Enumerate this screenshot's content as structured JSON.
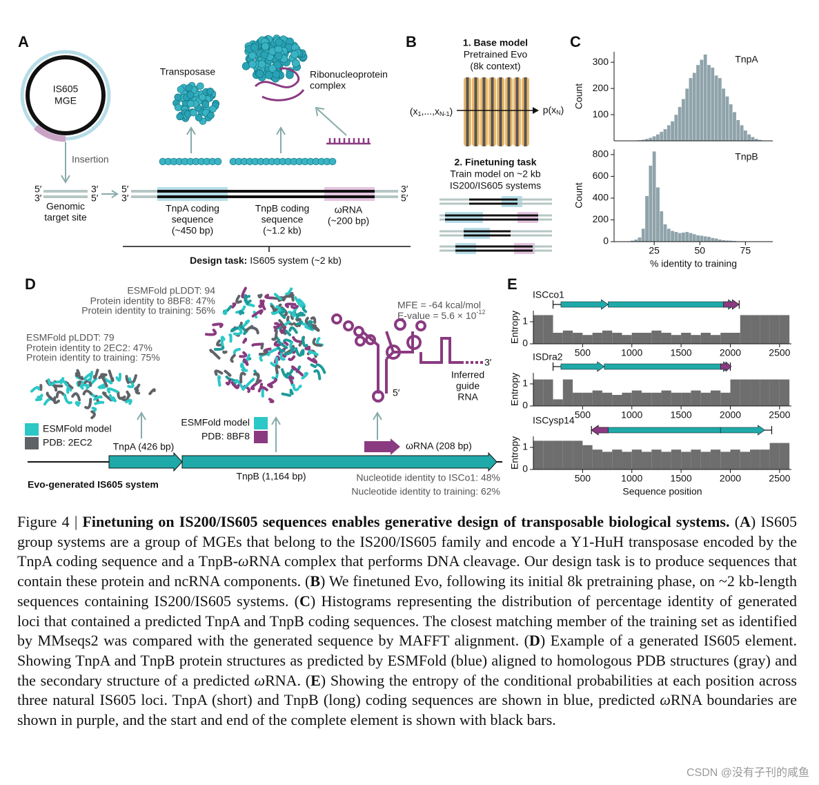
{
  "figure": {
    "A": {
      "label": "A",
      "mge": [
        "IS605",
        "MGE"
      ],
      "insertion": "Insertion",
      "genomic": [
        "Genomic",
        "target site"
      ],
      "five": "5′",
      "three": "3′",
      "transposase": "Transposase",
      "rnp": [
        "Ribonucleoprotein",
        "complex"
      ],
      "tnpa": [
        "TnpA coding",
        "sequence",
        "(~450 bp)"
      ],
      "tnpb": [
        "TnpB coding",
        "sequence",
        "(~1.2 kb)"
      ],
      "wrna": [
        "ωRNA",
        "(~200 bp)"
      ],
      "design_bold": "Design task:",
      "design": "IS605 system (~2 kb)"
    },
    "B": {
      "label": "B",
      "base": [
        "1. Base model",
        "Pretrained Evo",
        "(8k context)"
      ],
      "input": [
        "(x",
        "1",
        ",...,x",
        "N-1",
        ")"
      ],
      "output": [
        "p(x",
        "N",
        ")"
      ],
      "finetune": [
        "2. Finetuning task",
        "Train model on ~2 kb",
        "IS200/IS605 systems"
      ]
    },
    "C": {
      "label": "C"
    },
    "D": {
      "label": "D",
      "tnpb_info": [
        "ESMFold pLDDT: 94",
        "Protein identity to 8BF8: 47%",
        "Protein identity to training: 56%"
      ],
      "tnpa_info": [
        "ESMFold pLDDT: 79",
        "Protein identity to 2EC2: 47%",
        "Protein identity to training: 75%"
      ],
      "tnpa_legend": [
        "ESMFold model",
        "PDB: 2EC2"
      ],
      "tnpb_legend": [
        "ESMFold model",
        "PDB: 8BF8"
      ],
      "mfe": "MFE = -64 kcal/mol",
      "evalue": "E-value = 5.6 × 10",
      "evalue_exp": "-12",
      "five": "5′",
      "three": "3′",
      "guide": [
        "Inferred",
        "guide",
        "RNA"
      ],
      "tnpa_label": "TnpA (426 bp)",
      "tnpb_label": "TnpB (1,164 bp)",
      "wrna_label": "ωRNA (208 bp)",
      "system": "Evo-generated IS605 system",
      "nt_identity": [
        "Nucleotide identity to ISCo1: 48%",
        "Nucleotide identity to training: 62%"
      ]
    },
    "E": {
      "label": "E"
    }
  },
  "chart_data": [
    {
      "type": "histogram",
      "title": "TnpA",
      "ylabel": "Count",
      "color": "#8fa3aa",
      "xlim": [
        3,
        90
      ],
      "ylim": [
        0,
        340
      ],
      "yticks": [
        100,
        200,
        300
      ],
      "bins": [
        10,
        12,
        14,
        16,
        18,
        20,
        22,
        24,
        26,
        28,
        30,
        32,
        34,
        36,
        38,
        40,
        42,
        44,
        46,
        48,
        50,
        52,
        54,
        56,
        58,
        60,
        62,
        64,
        66,
        68,
        70,
        72,
        74,
        76,
        78,
        80,
        82,
        84,
        86,
        88
      ],
      "counts": [
        0,
        0,
        2,
        3,
        5,
        8,
        12,
        18,
        25,
        35,
        45,
        60,
        75,
        100,
        130,
        160,
        200,
        240,
        260,
        290,
        310,
        330,
        290,
        280,
        250,
        240,
        200,
        170,
        140,
        110,
        80,
        60,
        40,
        25,
        15,
        8,
        4,
        2,
        1
      ]
    },
    {
      "type": "histogram",
      "title": "TnpB",
      "ylabel": "Count",
      "xlabel": "% identity to training",
      "color": "#8fa3aa",
      "xlim": [
        3,
        90
      ],
      "ylim": [
        0,
        850
      ],
      "yticks": [
        0,
        200,
        400,
        600,
        800
      ],
      "xticks": [
        25,
        50,
        75
      ],
      "bins": [
        10,
        12,
        14,
        16,
        18,
        20,
        22,
        24,
        26,
        28,
        30,
        32,
        34,
        36,
        38,
        40,
        42,
        44,
        46,
        48,
        50,
        52,
        54,
        56,
        58,
        60,
        62,
        64,
        66,
        68,
        70,
        72,
        74,
        76,
        78,
        80,
        82,
        84,
        86,
        88
      ],
      "counts": [
        5,
        10,
        20,
        40,
        120,
        420,
        700,
        830,
        500,
        280,
        160,
        120,
        100,
        90,
        80,
        85,
        90,
        80,
        70,
        60,
        55,
        50,
        45,
        35,
        30,
        20,
        15,
        12,
        10,
        8,
        5,
        4,
        3,
        2,
        1,
        1,
        0,
        0,
        0
      ]
    },
    {
      "type": "bar",
      "title": "ISCco1",
      "ylabel": "Entropy",
      "color": "#6e6e6e",
      "xlim": [
        0,
        2620
      ],
      "ylim": [
        0,
        1.5
      ],
      "yticks": [
        0,
        1
      ],
      "xticks": [
        500,
        1000,
        1500,
        2000,
        2500
      ],
      "x": [
        50,
        150,
        250,
        350,
        450,
        550,
        650,
        750,
        850,
        950,
        1050,
        1150,
        1250,
        1350,
        1450,
        1550,
        1650,
        1750,
        1850,
        1950,
        2050,
        2150,
        2250,
        2350,
        2450,
        2550
      ],
      "values": [
        1.3,
        1.3,
        0.5,
        0.6,
        0.5,
        0.4,
        0.5,
        0.6,
        0.5,
        0.4,
        0.5,
        0.5,
        0.6,
        0.5,
        0.4,
        0.5,
        0.4,
        0.5,
        0.4,
        0.5,
        0.5,
        1.3,
        1.3,
        1.3,
        1.3,
        1.3
      ],
      "element": [
        200,
        2090
      ],
      "tnpa": [
        280,
        760
      ],
      "tnpb": [
        760,
        2050
      ],
      "wrna": [
        1930,
        2090
      ]
    },
    {
      "type": "bar",
      "title": "ISDra2",
      "ylabel": "Entropy",
      "color": "#6e6e6e",
      "xlim": [
        0,
        2620
      ],
      "ylim": [
        0,
        1.5
      ],
      "yticks": [
        0,
        1
      ],
      "xticks": [
        500,
        1000,
        1500,
        2000,
        2500
      ],
      "x": [
        50,
        150,
        250,
        350,
        450,
        550,
        650,
        750,
        850,
        950,
        1050,
        1150,
        1250,
        1350,
        1450,
        1550,
        1650,
        1750,
        1850,
        1950,
        2050,
        2150,
        2250,
        2350,
        2450,
        2550
      ],
      "values": [
        1.2,
        1.2,
        0.3,
        1.2,
        0.6,
        0.6,
        0.7,
        0.6,
        0.5,
        0.6,
        0.7,
        0.6,
        0.6,
        0.7,
        0.6,
        0.6,
        0.7,
        0.6,
        0.7,
        0.6,
        1.2,
        1.2,
        1.2,
        1.2,
        1.2,
        1.2
      ],
      "element": [
        200,
        2000
      ],
      "tnpa": [
        280,
        720
      ],
      "tnpb": [
        720,
        2000
      ],
      "wrna": [
        1900,
        2010
      ]
    },
    {
      "type": "bar",
      "title": "ISCysp14",
      "ylabel": "Entropy",
      "xlabel": "Sequence position",
      "color": "#6e6e6e",
      "xlim": [
        0,
        2620
      ],
      "ylim": [
        0,
        1.5
      ],
      "yticks": [
        0,
        1
      ],
      "xticks": [
        500,
        1000,
        1500,
        2000,
        2500
      ],
      "x": [
        50,
        150,
        250,
        350,
        450,
        550,
        650,
        750,
        850,
        950,
        1050,
        1150,
        1250,
        1350,
        1450,
        1550,
        1650,
        1750,
        1850,
        1950,
        2050,
        2150,
        2250,
        2350,
        2450,
        2550
      ],
      "values": [
        1.3,
        1.3,
        1.3,
        1.3,
        1.3,
        1.1,
        0.9,
        0.8,
        0.9,
        0.8,
        0.9,
        0.8,
        0.9,
        0.8,
        0.9,
        0.8,
        0.9,
        0.8,
        0.9,
        0.8,
        0.9,
        0.8,
        0.9,
        0.9,
        1.2,
        1.2
      ],
      "element": [
        590,
        2420
      ],
      "tnpa": [
        1900,
        2350
      ],
      "tnpb": [
        1900,
        590
      ],
      "wrna": [
        760,
        590
      ]
    }
  ],
  "caption": {
    "label": "Figure 4 |",
    "title": "Finetuning on IS200/IS605 sequences enables generative design of transposable biological systems.",
    "runs": [
      {
        "text": "(",
        "style": "plain"
      },
      {
        "text": "A",
        "style": "bold"
      },
      {
        "text": ") IS605 group systems are a group of MGEs that belong to the IS200/IS605 family and encode a Y1-HuH transposase encoded by the TnpA coding sequence and a TnpB-",
        "style": "plain"
      },
      {
        "text": "ω",
        "style": "italic"
      },
      {
        "text": "RNA complex that performs DNA cleavage. Our design task is to produce sequences that contain these protein and ncRNA components. (",
        "style": "plain"
      },
      {
        "text": "B",
        "style": "bold"
      },
      {
        "text": ") We finetuned Evo, following its initial 8k pretraining phase, on ~2 kb-length sequences containing IS200/IS605 systems. (",
        "style": "plain"
      },
      {
        "text": "C",
        "style": "bold"
      },
      {
        "text": ") Histograms representing the distribution of percentage identity of generated loci that contained a predicted TnpA and TnpB coding sequences. The closest matching member of the training set as identified by MMseqs2 was compared with the generated sequence by MAFFT alignment. (",
        "style": "plain"
      },
      {
        "text": "D",
        "style": "bold"
      },
      {
        "text": ") Example of a generated IS605 element. Showing TnpA and TnpB protein structures as predicted by ESMFold (blue) aligned to homologous PDB structures (gray) and the secondary structure of a predicted ",
        "style": "plain"
      },
      {
        "text": "ω",
        "style": "italic"
      },
      {
        "text": "RNA. (",
        "style": "plain"
      },
      {
        "text": "E",
        "style": "bold"
      },
      {
        "text": ") Showing the entropy of the conditional probabilities at each position across three natural IS605 loci. TnpA (short) and TnpB (long) coding sequences are shown in blue, predicted ",
        "style": "plain"
      },
      {
        "text": "ω",
        "style": "italic"
      },
      {
        "text": "RNA boundaries are shown in purple, and the start and end of the complete element is shown with black bars.",
        "style": "plain"
      }
    ]
  },
  "watermark": "CSDN @没有子刊的咸鱼"
}
